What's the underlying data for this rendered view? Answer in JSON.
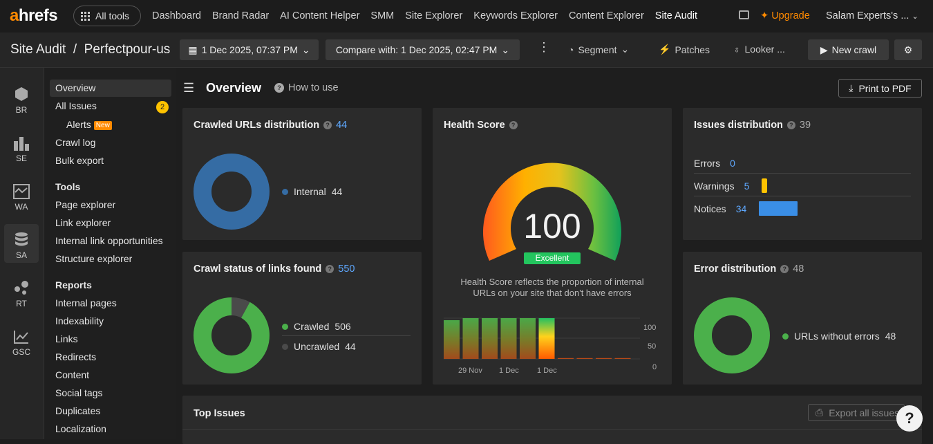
{
  "topbar": {
    "logo_a": "a",
    "logo_rest": "hrefs",
    "all_tools": "All tools",
    "nav": [
      "Dashboard",
      "Brand Radar",
      "AI Content Helper",
      "SMM",
      "Site Explorer",
      "Keywords Explorer",
      "Content Explorer",
      "Site Audit"
    ],
    "upgrade": "Upgrade",
    "account": "Salam Experts's ..."
  },
  "subbar": {
    "breadcrumb": "Site Audit  /  Perfectpour-us",
    "crawl_date": "1 Dec 2025, 07:37 PM",
    "compare": "Compare with: 1 Dec 2025, 02:47 PM",
    "segment": "Segment",
    "patches": "Patches",
    "looker": "Looker ...",
    "new_crawl": "New crawl"
  },
  "rail": [
    "BR",
    "SE",
    "WA",
    "SA",
    "RT",
    "GSC"
  ],
  "sidebar": {
    "overview": "Overview",
    "all_issues": "All Issues",
    "all_issues_count": "2",
    "alerts": "Alerts",
    "new_badge": "New",
    "crawl_log": "Crawl log",
    "bulk_export": "Bulk export",
    "tools_head": "Tools",
    "tools": [
      "Page explorer",
      "Link explorer",
      "Internal link opportunities",
      "Structure explorer"
    ],
    "reports_head": "Reports",
    "reports": [
      "Internal pages",
      "Indexability",
      "Links",
      "Redirects",
      "Content",
      "Social tags",
      "Duplicates",
      "Localization"
    ]
  },
  "main": {
    "title": "Overview",
    "how_to": "How to use",
    "print": "Print to PDF",
    "top_issues": "Top Issues",
    "export_all": "Export all issues"
  },
  "crawled": {
    "title": "Crawled URLs distribution",
    "count": "44",
    "legend": "Internal",
    "value": "44"
  },
  "status": {
    "title": "Crawl status of links found",
    "count": "550",
    "crawled_label": "Crawled",
    "crawled": "506",
    "uncrawled_label": "Uncrawled",
    "uncrawled": "44"
  },
  "health": {
    "title": "Health Score",
    "score": "100",
    "badge": "Excellent",
    "desc1": "Health Score reflects the proportion of internal",
    "desc2": "URLs on your site that don't have errors",
    "y_ticks": [
      "100",
      "50",
      "0"
    ],
    "x_labels": [
      "29 Nov",
      "1 Dec",
      "1 Dec"
    ],
    "bars": [
      95,
      100,
      100,
      100,
      100,
      100,
      0,
      0,
      0,
      0
    ]
  },
  "issues": {
    "title": "Issues distribution",
    "count": "39",
    "errors_label": "Errors",
    "errors": "0",
    "warnings_label": "Warnings",
    "warnings": "5",
    "notices_label": "Notices",
    "notices": "34"
  },
  "errdist": {
    "title": "Error distribution",
    "count": "48",
    "legend": "URLs without errors",
    "value": "48"
  },
  "colors": {
    "accent": "#ff8a00",
    "internal": "#356ca4",
    "green": "#4bb04b",
    "warn": "#ffc300",
    "notice": "#3a8ee6"
  }
}
